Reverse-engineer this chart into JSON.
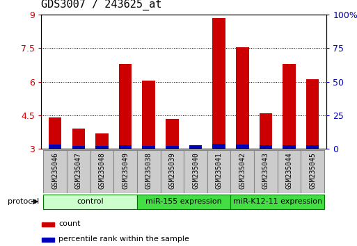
{
  "title": "GDS3007 / 243625_at",
  "samples": [
    "GSM235046",
    "GSM235047",
    "GSM235048",
    "GSM235049",
    "GSM235038",
    "GSM235039",
    "GSM235040",
    "GSM235041",
    "GSM235042",
    "GSM235043",
    "GSM235044",
    "GSM235045"
  ],
  "red_values": [
    4.4,
    3.9,
    3.7,
    6.8,
    6.05,
    4.35,
    3.1,
    8.85,
    7.55,
    4.6,
    6.8,
    6.1
  ],
  "blue_heights": [
    0.18,
    0.12,
    0.12,
    0.17,
    0.14,
    0.12,
    0.17,
    0.22,
    0.18,
    0.17,
    0.17,
    0.16
  ],
  "y_min": 3.0,
  "y_max": 9.0,
  "y_ticks": [
    3,
    4.5,
    6,
    7.5,
    9
  ],
  "y_tick_labels": [
    "3",
    "4.5",
    "6",
    "7.5",
    "9"
  ],
  "y2_ticks": [
    0,
    25,
    50,
    75,
    100
  ],
  "y2_tick_labels": [
    "0",
    "25",
    "50",
    "75",
    "100%"
  ],
  "bar_color": "#cc0000",
  "blue_color": "#0000bb",
  "bar_width": 0.55,
  "title_fontsize": 11,
  "groups": [
    {
      "label": "control",
      "start": 0,
      "end": 3,
      "color": "#ccffcc"
    },
    {
      "label": "miR-155 expression",
      "start": 4,
      "end": 7,
      "color": "#44dd44"
    },
    {
      "label": "miR-K12-11 expression",
      "start": 8,
      "end": 11,
      "color": "#44dd44"
    }
  ],
  "sample_box_color": "#cccccc",
  "sample_box_edge": "#888888",
  "protocol_label": "protocol",
  "legend_red_label": "count",
  "legend_blue_label": "percentile rank within the sample"
}
